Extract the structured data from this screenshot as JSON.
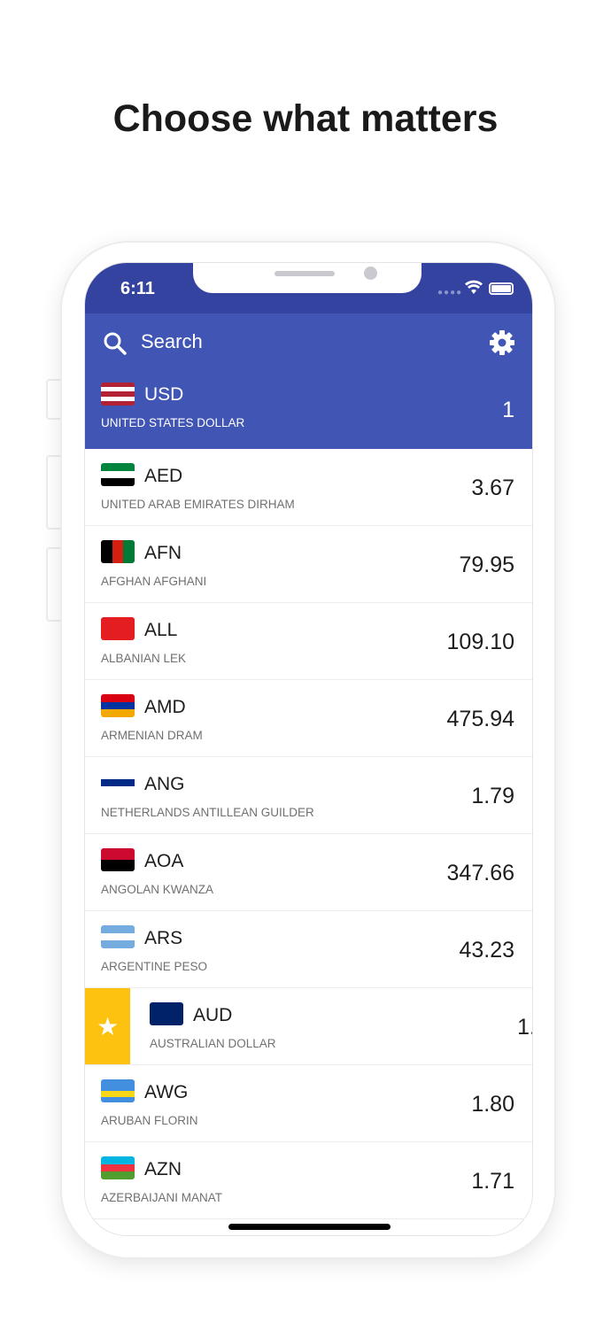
{
  "headline": "Choose what matters",
  "status": {
    "time": "6:11"
  },
  "header": {
    "search_placeholder": "Search",
    "base": {
      "code": "USD",
      "name": "UNITED STATES DOLLAR",
      "value": "1",
      "flag": [
        "#b22234",
        "#fff",
        "#b22234",
        "#fff",
        "#b22234"
      ]
    }
  },
  "colors": {
    "status_bar": "#3443a0",
    "header": "#4155b5",
    "favorite": "#fdc20f"
  },
  "rows": [
    {
      "code": "AED",
      "name": "UNITED ARAB EMIRATES DIRHAM",
      "value": "3.67",
      "flag": [
        "#00843d",
        "#fff",
        "#000"
      ]
    },
    {
      "code": "AFN",
      "name": "AFGHAN AFGHANI",
      "value": "79.95",
      "flag": [
        "#000",
        "#d32011",
        "#007a36"
      ],
      "vertical": true
    },
    {
      "code": "ALL",
      "name": "ALBANIAN LEK",
      "value": "109.10",
      "flag": [
        "#e41e20"
      ]
    },
    {
      "code": "AMD",
      "name": "ARMENIAN DRAM",
      "value": "475.94",
      "flag": [
        "#d90012",
        "#0033a0",
        "#f2a800"
      ]
    },
    {
      "code": "ANG",
      "name": "NETHERLANDS ANTILLEAN GUILDER",
      "value": "1.79",
      "flag": [
        "#fff",
        "#012a87",
        "#fff"
      ]
    },
    {
      "code": "AOA",
      "name": "ANGOLAN KWANZA",
      "value": "347.66",
      "flag": [
        "#cc092f",
        "#000"
      ]
    },
    {
      "code": "ARS",
      "name": "ARGENTINE PESO",
      "value": "43.23",
      "flag": [
        "#74acdf",
        "#fff",
        "#74acdf"
      ]
    },
    {
      "code": "AUD",
      "name": "AUSTRALIAN DOLLAR",
      "value": "1.",
      "flag": [
        "#012169"
      ],
      "favorite": true
    },
    {
      "code": "AWG",
      "name": "ARUBAN FLORIN",
      "value": "1.80",
      "flag": [
        "#418fde",
        "#418fde",
        "#f9d616",
        "#418fde"
      ]
    },
    {
      "code": "AZN",
      "name": "AZERBAIJANI MANAT",
      "value": "1.71",
      "flag": [
        "#00b5e2",
        "#ef3340",
        "#509e2f"
      ]
    }
  ]
}
